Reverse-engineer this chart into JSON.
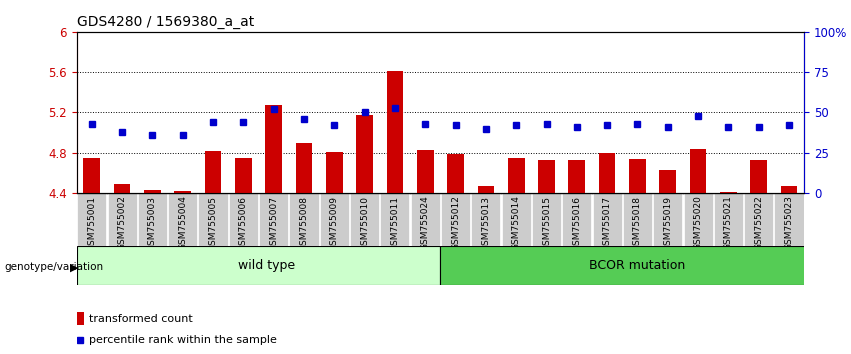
{
  "title": "GDS4280 / 1569380_a_at",
  "samples": [
    "GSM755001",
    "GSM755002",
    "GSM755003",
    "GSM755004",
    "GSM755005",
    "GSM755006",
    "GSM755007",
    "GSM755008",
    "GSM755009",
    "GSM755010",
    "GSM755011",
    "GSM755024",
    "GSM755012",
    "GSM755013",
    "GSM755014",
    "GSM755015",
    "GSM755016",
    "GSM755017",
    "GSM755018",
    "GSM755019",
    "GSM755020",
    "GSM755021",
    "GSM755022",
    "GSM755023"
  ],
  "transformed_count": [
    4.75,
    4.49,
    4.43,
    4.42,
    4.82,
    4.75,
    5.27,
    4.9,
    4.81,
    5.17,
    5.61,
    4.83,
    4.79,
    4.47,
    4.75,
    4.73,
    4.73,
    4.8,
    4.74,
    4.63,
    4.84,
    4.41,
    4.73,
    4.47
  ],
  "percentile_values": [
    43,
    38,
    36,
    36,
    44,
    44,
    52,
    46,
    42,
    50,
    53,
    43,
    42,
    40,
    42,
    43,
    41,
    42,
    43,
    41,
    48,
    41,
    41,
    42
  ],
  "wild_type_count": 12,
  "ylim_left": [
    4.4,
    6.0
  ],
  "ylim_right": [
    0,
    100
  ],
  "yticks_left": [
    4.4,
    4.8,
    5.2,
    5.6,
    6.0
  ],
  "ytick_labels_left": [
    "4.4",
    "4.8",
    "5.2",
    "5.6",
    "6"
  ],
  "yticks_right": [
    0,
    25,
    50,
    75,
    100
  ],
  "ytick_labels_right": [
    "0",
    "25",
    "50",
    "75",
    "100%"
  ],
  "bar_color": "#cc0000",
  "dot_color": "#0000cc",
  "bar_bottom": 4.4,
  "group1_label": "wild type",
  "group2_label": "BCOR mutation",
  "group1_color": "#ccffcc",
  "group2_color": "#55cc55",
  "group_label_prefix": "genotype/variation",
  "legend_bar_label": "transformed count",
  "legend_dot_label": "percentile rank within the sample",
  "bg_color": "#ffffff",
  "plot_bg_color": "#ffffff",
  "tick_label_color_left": "#cc0000",
  "tick_label_color_right": "#0000cc",
  "sample_bg_color": "#cccccc",
  "title_fontsize": 10
}
